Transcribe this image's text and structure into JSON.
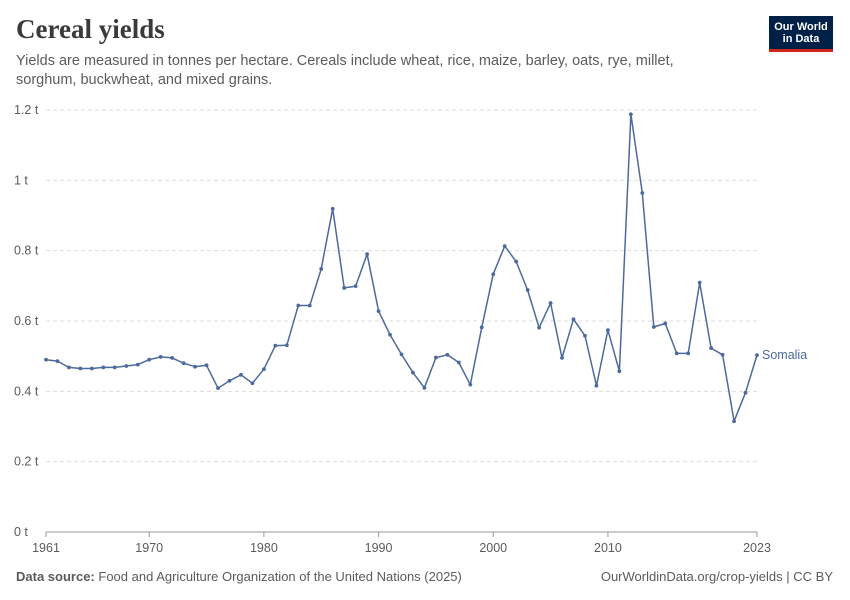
{
  "header": {
    "title": "Cereal yields",
    "subtitle": "Yields are measured in tonnes per hectare. Cereals include wheat, rice, maize, barley, oats, rye, millet, sorghum, buckwheat, and mixed grains.",
    "logo_line1": "Our World",
    "logo_line2": "in Data"
  },
  "footer": {
    "source_label": "Data source:",
    "source_text": "Food and Agriculture Organization of the United Nations (2025)",
    "url_text": "OurWorldinData.org/crop-yields | CC BY"
  },
  "colors": {
    "series": "#4c6a9c",
    "grid": "#dddddd",
    "axis": "#999999",
    "text": "#5b5b5b"
  },
  "chart_data": {
    "type": "line",
    "title": "Cereal yields",
    "ylabel": "",
    "xlabel": "",
    "ylim": [
      0,
      1.2
    ],
    "xlim": [
      1961,
      2023
    ],
    "y_ticks": [
      0,
      0.2,
      0.4,
      0.6,
      0.8,
      1,
      1.2
    ],
    "y_tick_labels": [
      "0 t",
      "0.2 t",
      "0.4 t",
      "0.6 t",
      "0.8 t",
      "1 t",
      "1.2 t"
    ],
    "x_ticks": [
      1961,
      1970,
      1980,
      1990,
      2000,
      2010,
      2023
    ],
    "x_tick_labels": [
      "1961",
      "1970",
      "1980",
      "1990",
      "2000",
      "2010",
      "2023"
    ],
    "grid": "horizontal dashed",
    "legend": "end-of-line label",
    "series": [
      {
        "name": "Somalia",
        "x": [
          1961,
          1962,
          1963,
          1964,
          1965,
          1966,
          1967,
          1968,
          1969,
          1970,
          1971,
          1972,
          1973,
          1974,
          1975,
          1976,
          1977,
          1978,
          1979,
          1980,
          1981,
          1982,
          1983,
          1984,
          1985,
          1986,
          1987,
          1988,
          1989,
          1990,
          1991,
          1992,
          1993,
          1994,
          1995,
          1996,
          1997,
          1998,
          1999,
          2000,
          2001,
          2002,
          2003,
          2004,
          2005,
          2006,
          2007,
          2008,
          2009,
          2010,
          2011,
          2012,
          2013,
          2014,
          2015,
          2016,
          2017,
          2018,
          2019,
          2020,
          2021,
          2022,
          2023
        ],
        "values": [
          0.49,
          0.486,
          0.468,
          0.465,
          0.465,
          0.468,
          0.468,
          0.472,
          0.476,
          0.49,
          0.498,
          0.495,
          0.48,
          0.47,
          0.474,
          0.409,
          0.43,
          0.447,
          0.423,
          0.463,
          0.53,
          0.531,
          0.644,
          0.644,
          0.748,
          0.919,
          0.694,
          0.699,
          0.79,
          0.628,
          0.561,
          0.505,
          0.453,
          0.41,
          0.496,
          0.504,
          0.482,
          0.419,
          0.582,
          0.733,
          0.813,
          0.769,
          0.688,
          0.581,
          0.651,
          0.495,
          0.605,
          0.558,
          0.416,
          0.574,
          0.457,
          1.188,
          0.964,
          0.583,
          0.593,
          0.508,
          0.508,
          0.709,
          0.523,
          0.504,
          0.315,
          0.396,
          0.503
        ]
      }
    ]
  }
}
